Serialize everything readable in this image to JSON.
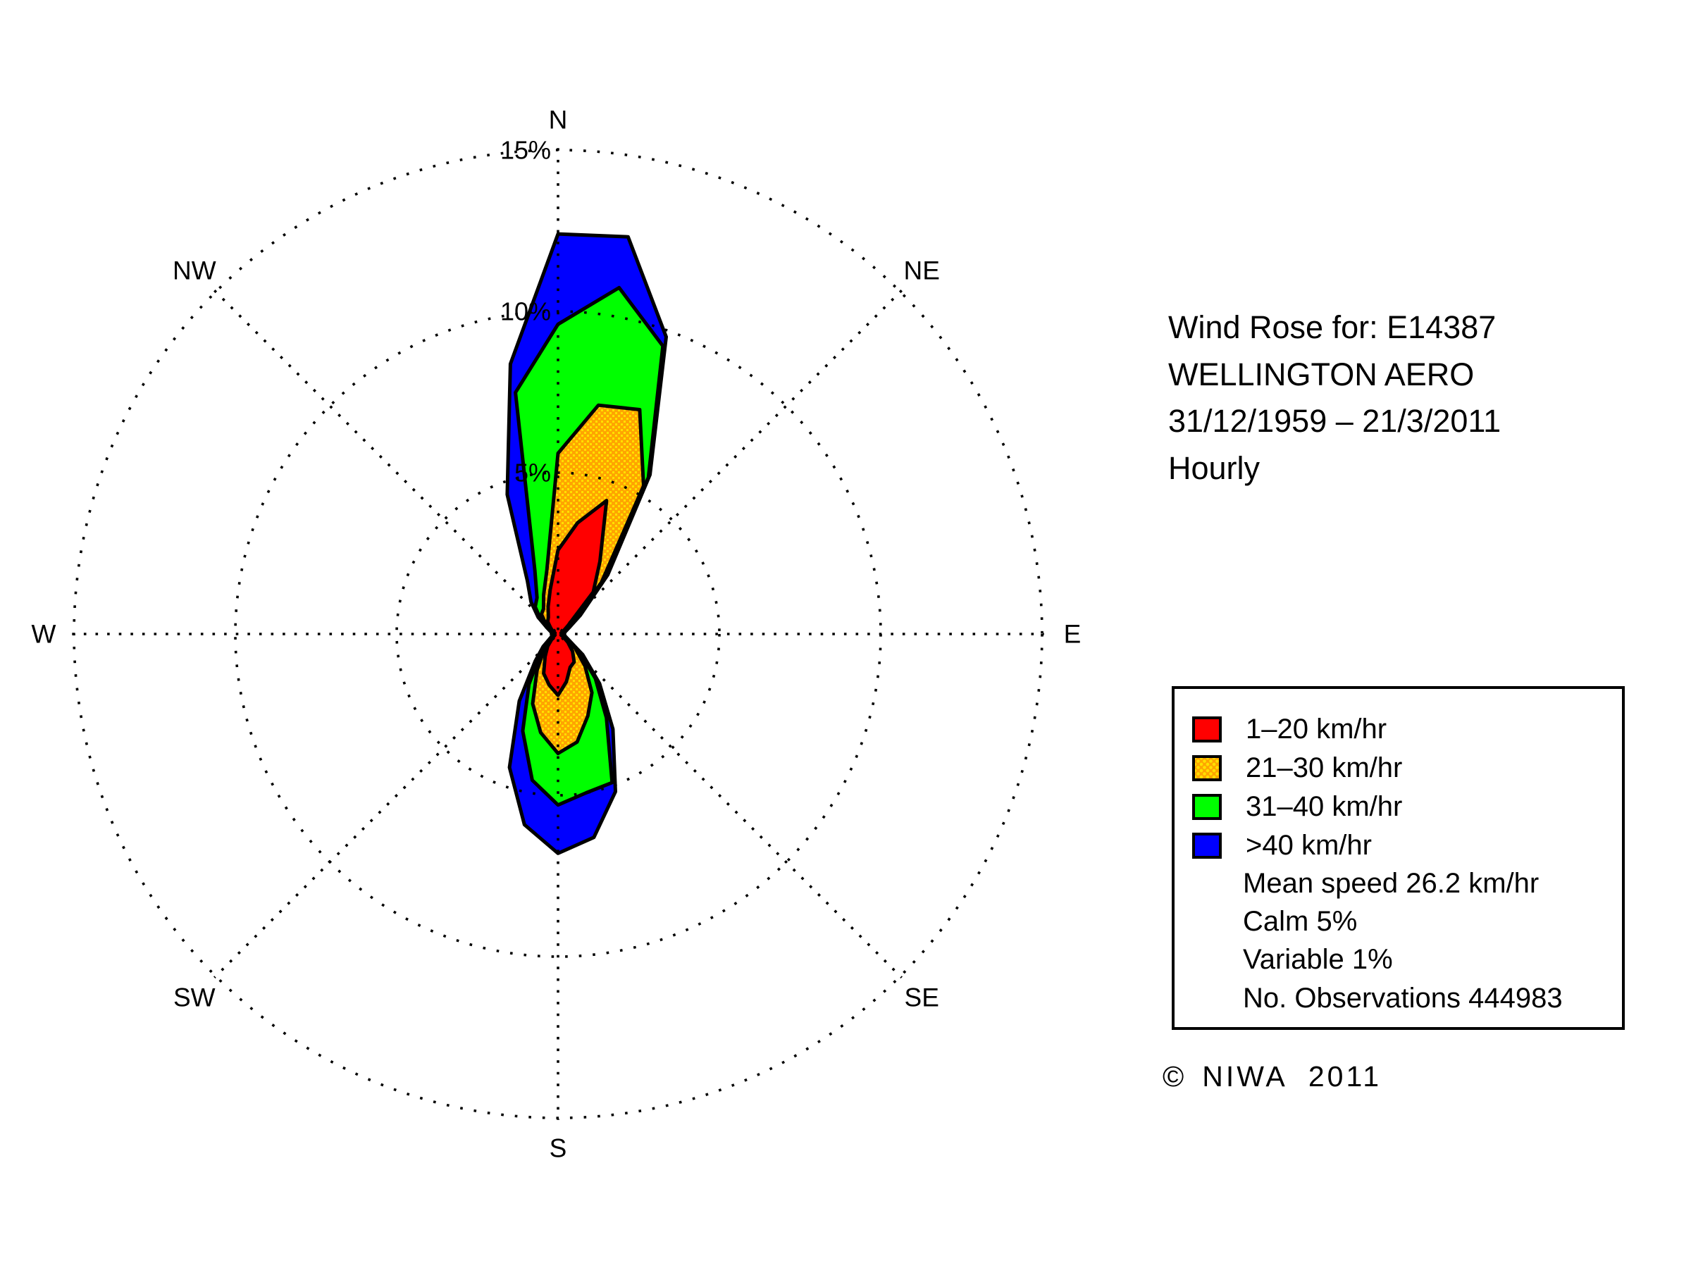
{
  "header": {
    "line1": "Wind Rose for: E14387",
    "line2": "WELLINGTON AERO",
    "line3": "31/12/1959 – 21/3/2011",
    "line4": "Hourly"
  },
  "legend": {
    "items": [
      {
        "label": "1–20 km/hr",
        "color": "#FF0000",
        "pattern": "solid"
      },
      {
        "label": "21–30 km/hr",
        "color": "#FFA500",
        "pattern": "dots",
        "dot_color": "#FFE000"
      },
      {
        "label": "31–40 km/hr",
        "color": "#00FF00",
        "pattern": "solid"
      },
      {
        "label": ">40 km/hr",
        "color": "#0000FF",
        "pattern": "solid"
      }
    ],
    "notes": [
      "Mean speed 26.2 km/hr",
      "Calm 5%",
      "Variable 1%",
      "No. Observations 444983"
    ]
  },
  "copyright": {
    "symbol": "©",
    "text": "NIWA 2011"
  },
  "chart_data": {
    "type": "area",
    "subtype": "wind-rose-polar-contour",
    "station": "E14387 WELLINGTON AERO",
    "period": "31/12/1959 – 21/3/2011",
    "interval": "Hourly",
    "units": "% of observations",
    "rlim": [
      0,
      15
    ],
    "grid": "dotted",
    "radial_ticks": [
      {
        "label": "5%",
        "pct": 5
      },
      {
        "label": "10%",
        "pct": 10
      },
      {
        "label": "15%",
        "pct": 15
      }
    ],
    "compass_labels": [
      {
        "label": "N",
        "angle_deg": 0
      },
      {
        "label": "NE",
        "angle_deg": 45
      },
      {
        "label": "E",
        "angle_deg": 90
      },
      {
        "label": "SE",
        "angle_deg": 135
      },
      {
        "label": "S",
        "angle_deg": 180
      },
      {
        "label": "SW",
        "angle_deg": 225
      },
      {
        "label": "W",
        "angle_deg": 270
      },
      {
        "label": "NW",
        "angle_deg": 315
      }
    ],
    "directions_deg": [
      0,
      10,
      20,
      30,
      40,
      50,
      60,
      70,
      80,
      90,
      100,
      110,
      120,
      130,
      140,
      150,
      160,
      170,
      180,
      190,
      200,
      210,
      220,
      230,
      240,
      250,
      260,
      270,
      280,
      290,
      300,
      310,
      320,
      330,
      340,
      350
    ],
    "series_note": "values are cumulative frequency (%) by direction; each contour encloses the previous speed class",
    "series": [
      {
        "name": "1–20 km/hr",
        "color": "#FF0000",
        "pattern": "solid",
        "cumulative_pct": [
          2.6,
          3.5,
          4.4,
          2.6,
          1.7,
          0.4,
          0.2,
          0.1,
          0.1,
          0.1,
          0.1,
          0.1,
          0.2,
          0.4,
          0.7,
          1.0,
          1.1,
          1.5,
          1.9,
          1.6,
          1.3,
          0.8,
          0.5,
          0.25,
          0.15,
          0.1,
          0.1,
          0.1,
          0.1,
          0.1,
          0.2,
          0.3,
          0.5,
          0.6,
          0.9,
          1.4
        ]
      },
      {
        "name": "21–30 km/hr",
        "color": "#FFA500",
        "pattern": "dots",
        "dot_color": "#FFE000",
        "cumulative_pct": [
          5.6,
          7.2,
          7.4,
          5.3,
          2.1,
          0.7,
          0.3,
          0.2,
          0.15,
          0.15,
          0.15,
          0.2,
          0.3,
          0.7,
          1.3,
          2.1,
          2.7,
          3.4,
          3.7,
          3.1,
          2.3,
          1.3,
          0.7,
          0.4,
          0.2,
          0.15,
          0.15,
          0.15,
          0.15,
          0.2,
          0.3,
          0.5,
          0.8,
          0.9,
          1.3,
          2.0
        ]
      },
      {
        "name": "31–40 km/hr",
        "color": "#00FF00",
        "pattern": "solid",
        "cumulative_pct": [
          9.6,
          10.9,
          9.5,
          5.6,
          2.3,
          0.8,
          0.4,
          0.25,
          0.2,
          0.2,
          0.2,
          0.25,
          0.4,
          0.9,
          1.8,
          3.0,
          4.9,
          5.0,
          5.3,
          4.6,
          3.2,
          1.8,
          0.9,
          0.5,
          0.3,
          0.2,
          0.2,
          0.2,
          0.2,
          0.25,
          0.4,
          0.7,
          1.1,
          1.3,
          2.1,
          7.6
        ]
      },
      {
        "name": ">40 km/hr",
        "color": "#0000FF",
        "pattern": "solid",
        "cumulative_pct": [
          12.4,
          12.5,
          9.8,
          5.7,
          2.4,
          0.9,
          0.4,
          0.25,
          0.2,
          0.2,
          0.2,
          0.25,
          0.4,
          1.0,
          2.0,
          3.4,
          5.2,
          6.4,
          6.8,
          6.0,
          4.4,
          2.4,
          1.1,
          0.6,
          0.3,
          0.2,
          0.2,
          0.2,
          0.2,
          0.25,
          0.4,
          0.8,
          1.3,
          1.9,
          4.6,
          8.5
        ]
      }
    ],
    "stats": {
      "mean_speed_kmhr": 26.2,
      "calm_pct": 5,
      "variable_pct": 1,
      "observations": 444983
    }
  }
}
